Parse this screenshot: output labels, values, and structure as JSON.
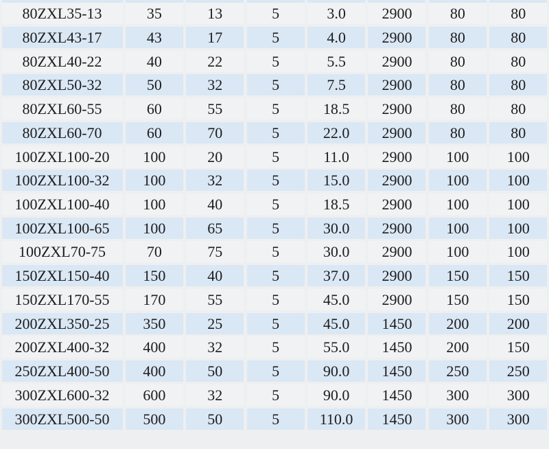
{
  "colors": {
    "page_bg": "#eeeff0",
    "row_blue": "#dae7f5",
    "row_white": "#f1f2f3",
    "text": "#1c1c1c"
  },
  "table": {
    "columns_count": 8,
    "top_partial_row_visible": true,
    "rows": [
      {
        "cells": [
          "80ZXL35-13",
          "35",
          "13",
          "5",
          "3.0",
          "2900",
          "80",
          "80"
        ]
      },
      {
        "cells": [
          "80ZXL43-17",
          "43",
          "17",
          "5",
          "4.0",
          "2900",
          "80",
          "80"
        ]
      },
      {
        "cells": [
          "80ZXL40-22",
          "40",
          "22",
          "5",
          "5.5",
          "2900",
          "80",
          "80"
        ]
      },
      {
        "cells": [
          "80ZXL50-32",
          "50",
          "32",
          "5",
          "7.5",
          "2900",
          "80",
          "80"
        ]
      },
      {
        "cells": [
          "80ZXL60-55",
          "60",
          "55",
          "5",
          "18.5",
          "2900",
          "80",
          "80"
        ]
      },
      {
        "cells": [
          "80ZXL60-70",
          "60",
          "70",
          "5",
          "22.0",
          "2900",
          "80",
          "80"
        ]
      },
      {
        "cells": [
          "100ZXL100-20",
          "100",
          "20",
          "5",
          "11.0",
          "2900",
          "100",
          "100"
        ]
      },
      {
        "cells": [
          "100ZXL100-32",
          "100",
          "32",
          "5",
          "15.0",
          "2900",
          "100",
          "100"
        ]
      },
      {
        "cells": [
          "100ZXL100-40",
          "100",
          "40",
          "5",
          "18.5",
          "2900",
          "100",
          "100"
        ]
      },
      {
        "cells": [
          "100ZXL100-65",
          "100",
          "65",
          "5",
          "30.0",
          "2900",
          "100",
          "100"
        ]
      },
      {
        "cells": [
          "100ZXL70-75",
          "70",
          "75",
          "5",
          "30.0",
          "2900",
          "100",
          "100"
        ]
      },
      {
        "cells": [
          "150ZXL150-40",
          "150",
          "40",
          "5",
          "37.0",
          "2900",
          "150",
          "150"
        ]
      },
      {
        "cells": [
          "150ZXL170-55",
          "170",
          "55",
          "5",
          "45.0",
          "2900",
          "150",
          "150"
        ]
      },
      {
        "cells": [
          "200ZXL350-25",
          "350",
          "25",
          "5",
          "45.0",
          "1450",
          "200",
          "200"
        ]
      },
      {
        "cells": [
          "200ZXL400-32",
          "400",
          "32",
          "5",
          "55.0",
          "1450",
          "200",
          "150"
        ]
      },
      {
        "cells": [
          "250ZXL400-50",
          "400",
          "50",
          "5",
          "90.0",
          "1450",
          "250",
          "250"
        ]
      },
      {
        "cells": [
          "300ZXL600-32",
          "600",
          "32",
          "5",
          "90.0",
          "1450",
          "300",
          "300"
        ]
      },
      {
        "cells": [
          "300ZXL500-50",
          "500",
          "50",
          "5",
          "110.0",
          "1450",
          "300",
          "300"
        ]
      }
    ]
  }
}
